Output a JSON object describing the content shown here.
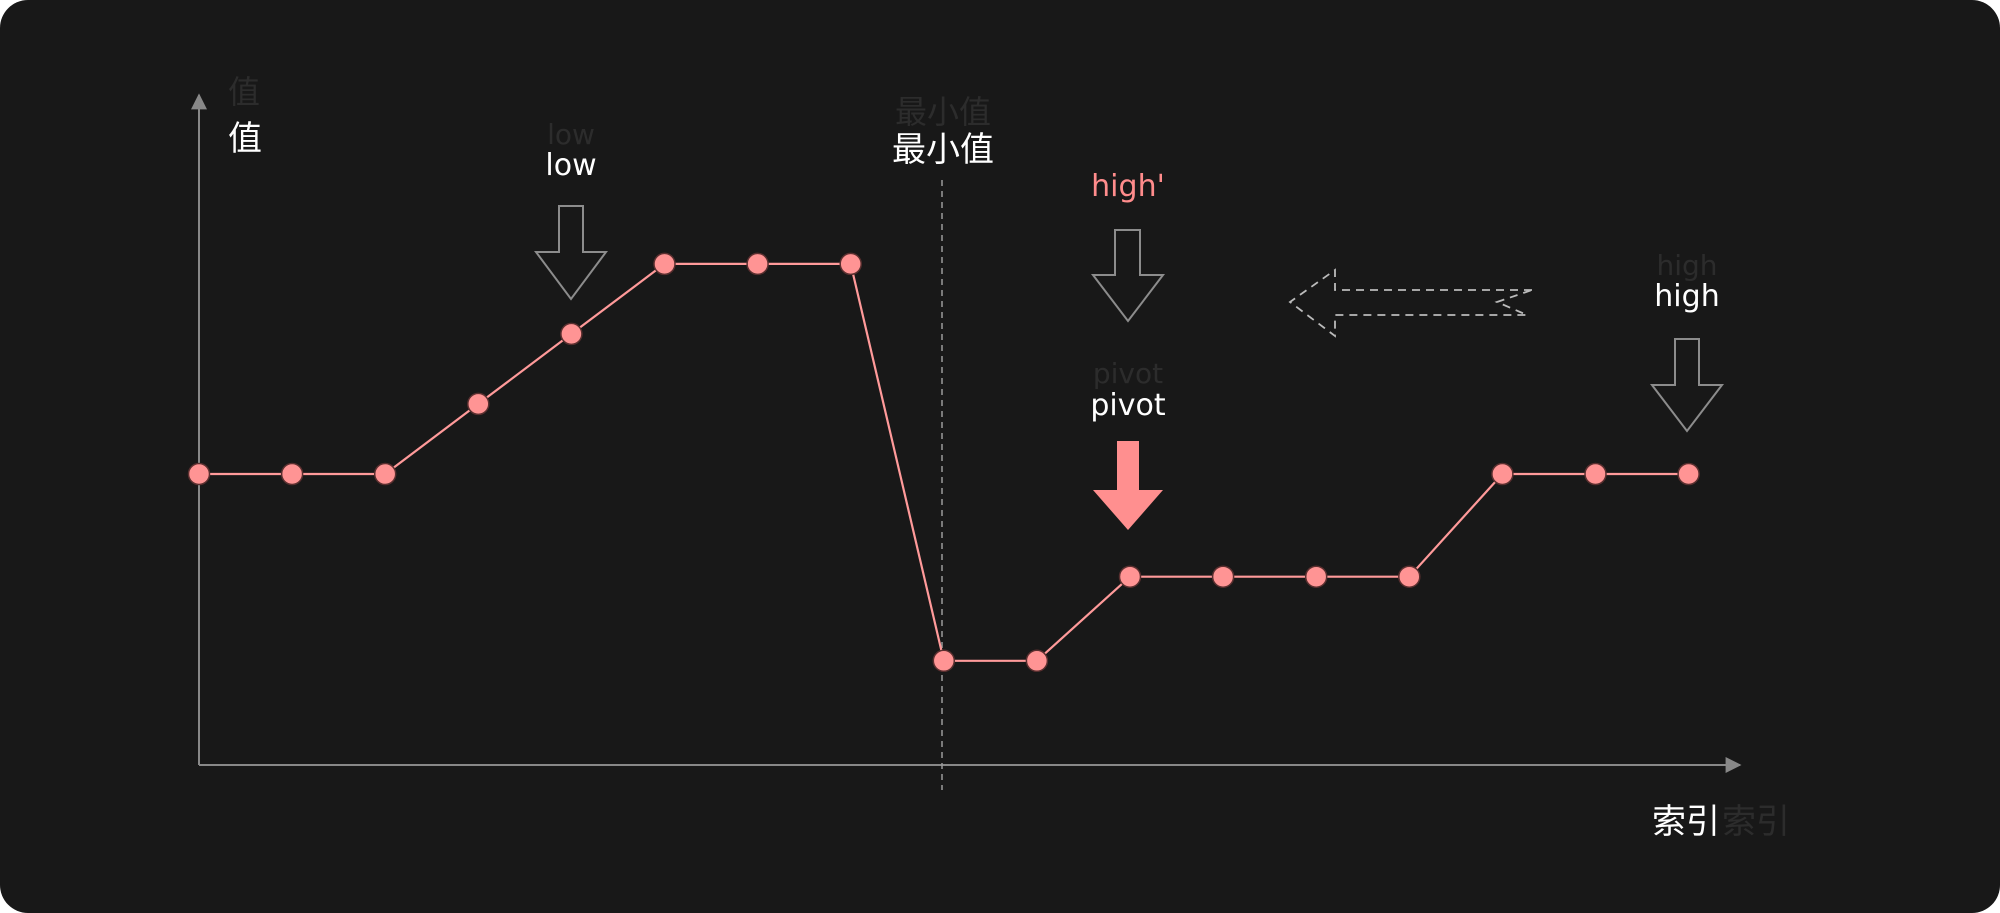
{
  "axes": {
    "y_label": "值",
    "x_label": "索引"
  },
  "labels": {
    "low": "low",
    "min": "最小值",
    "high_prime": "high'",
    "pivot": "pivot",
    "high": "high"
  },
  "series": {
    "values": [
      0,
      0,
      0,
      1.5,
      3,
      4.5,
      4.5,
      4.5,
      -4,
      -4,
      -2.2,
      -2.2,
      -2.2,
      -2.2,
      0,
      0,
      0
    ]
  },
  "colors": {
    "background": "#181818",
    "line": "#ff9a9a",
    "point_fill": "#ff9494",
    "axis": "#888888",
    "arrow_outline": "#8c8c8c",
    "pivot_arrow": "#ff8f8f",
    "dashed": "#bbbbbb"
  },
  "icons": {
    "low_arrow": "down-arrow-outline-icon",
    "high_prime_arrow": "down-arrow-outline-icon",
    "high_arrow": "down-arrow-outline-icon",
    "pivot_arrow": "down-arrow-filled-icon",
    "move_left_arrow": "dashed-left-arrow-icon"
  }
}
